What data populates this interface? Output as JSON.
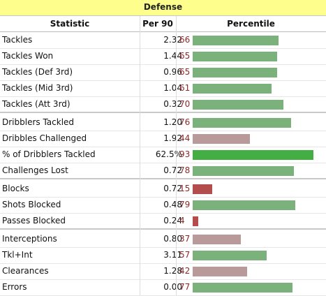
{
  "title": "Defense",
  "columns": [
    "Statistic",
    "Per 90",
    "Percentile"
  ],
  "colors": {
    "green": "#7bb27b",
    "bright_green": "#44ad44",
    "mauve": "#b89a9a",
    "red": "#b34d4d",
    "pct_text": "#8b2a2a"
  },
  "groups": [
    [
      {
        "stat": "Tackles",
        "per90": "2.32",
        "pct": "66",
        "pct_value": 66,
        "color": "green"
      },
      {
        "stat": "Tackles Won",
        "per90": "1.44",
        "pct": "65",
        "pct_value": 65,
        "color": "green"
      },
      {
        "stat": "Tackles (Def 3rd)",
        "per90": "0.96",
        "pct": "65",
        "pct_value": 65,
        "color": "green"
      },
      {
        "stat": "Tackles (Mid 3rd)",
        "per90": "1.04",
        "pct": "61",
        "pct_value": 61,
        "color": "green"
      },
      {
        "stat": "Tackles (Att 3rd)",
        "per90": "0.32",
        "pct": "70",
        "pct_value": 70,
        "color": "green"
      }
    ],
    [
      {
        "stat": "Dribblers Tackled",
        "per90": "1.20",
        "pct": "76",
        "pct_value": 76,
        "color": "green"
      },
      {
        "stat": "Dribbles Challenged",
        "per90": "1.92",
        "pct": "44",
        "pct_value": 44,
        "color": "mauve"
      },
      {
        "stat": "% of Dribblers Tackled",
        "per90": "62.5%",
        "pct": "93",
        "pct_value": 93,
        "color": "bright_green"
      },
      {
        "stat": "Challenges Lost",
        "per90": "0.72",
        "pct": "78",
        "pct_value": 78,
        "color": "green"
      }
    ],
    [
      {
        "stat": "Blocks",
        "per90": "0.72",
        "pct": "15",
        "pct_value": 15,
        "color": "red"
      },
      {
        "stat": "Shots Blocked",
        "per90": "0.48",
        "pct": "79",
        "pct_value": 79,
        "color": "green"
      },
      {
        "stat": "Passes Blocked",
        "per90": "0.24",
        "pct": "4",
        "pct_value": 4,
        "color": "red"
      }
    ],
    [
      {
        "stat": "Interceptions",
        "per90": "0.80",
        "pct": "37",
        "pct_value": 37,
        "color": "mauve"
      },
      {
        "stat": "Tkl+Int",
        "per90": "3.11",
        "pct": "57",
        "pct_value": 57,
        "color": "green"
      },
      {
        "stat": "Clearances",
        "per90": "1.28",
        "pct": "42",
        "pct_value": 42,
        "color": "mauve"
      },
      {
        "stat": "Errors",
        "per90": "0.00",
        "pct": "77",
        "pct_value": 77,
        "color": "green"
      }
    ]
  ]
}
